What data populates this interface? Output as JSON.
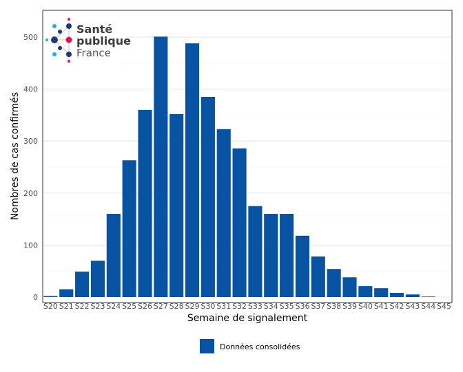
{
  "chart_data": {
    "type": "bar",
    "xlabel": "Semaine de signalement",
    "ylabel": "Nombres de cas confirmés",
    "ylim": [
      0,
      551
    ],
    "yticks": [
      0,
      100,
      200,
      300,
      400,
      500
    ],
    "grid": true,
    "legend_position": "bottom",
    "categories": [
      "S20",
      "S21",
      "S22",
      "S23",
      "S24",
      "S25",
      "S26",
      "S27",
      "S28",
      "S29",
      "S30",
      "S31",
      "S32",
      "S33",
      "S34",
      "S35",
      "S36",
      "S37",
      "S38",
      "S39",
      "S40",
      "S41",
      "S42",
      "S43",
      "S44",
      "S45"
    ],
    "series": [
      {
        "name": "Données consolidées",
        "color": "#0753a1",
        "values": [
          2,
          15,
          49,
          70,
          160,
          263,
          360,
          501,
          352,
          488,
          385,
          323,
          286,
          175,
          160,
          160,
          118,
          78,
          54,
          38,
          21,
          17,
          8,
          5,
          1,
          0
        ]
      }
    ]
  },
  "logo": {
    "line1": "Santé",
    "line2": "publique",
    "line3": "France"
  }
}
